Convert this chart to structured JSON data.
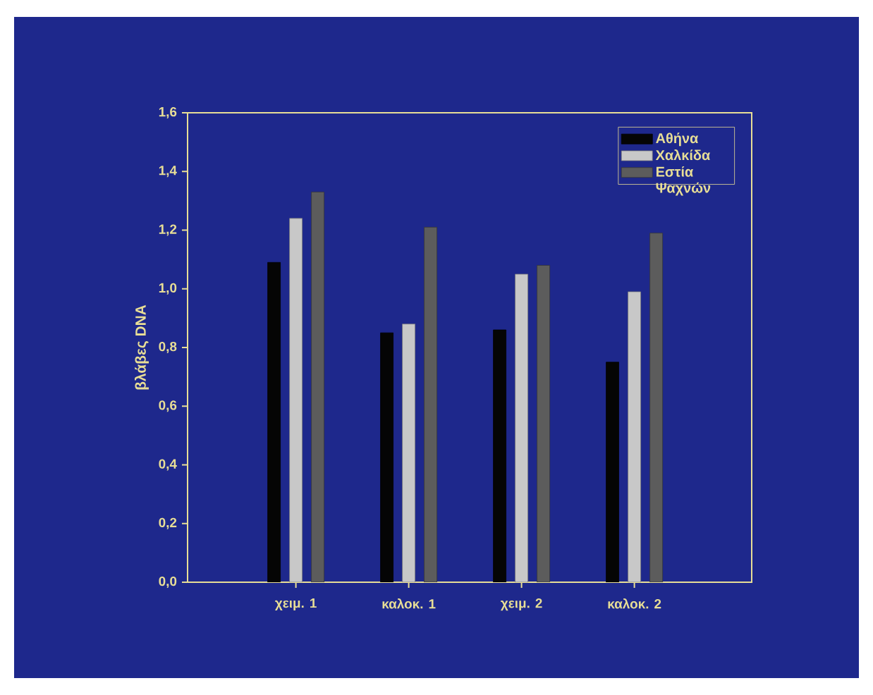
{
  "chart_data": {
    "type": "bar",
    "ylabel": "βλάβες DNA",
    "categories": [
      "χειμ. 1",
      "καλοκ. 1",
      "χειμ. 2",
      "καλοκ. 2"
    ],
    "series": [
      {
        "name": "Αθήνα",
        "color": "#050505",
        "values": [
          1.09,
          0.85,
          0.86,
          0.75
        ]
      },
      {
        "name": "Χαλκίδα",
        "color": "#c8c8c8",
        "values": [
          1.24,
          0.88,
          1.05,
          0.99
        ]
      },
      {
        "name": "Εστία Ψαχνών",
        "color": "#5c5c5c",
        "values": [
          1.33,
          1.21,
          1.08,
          1.19
        ]
      }
    ],
    "ylim": [
      0,
      1.6
    ],
    "yticks": [
      {
        "value": 0,
        "label": "0,0"
      },
      {
        "value": 0.2,
        "label": "0,2"
      },
      {
        "value": 0.4,
        "label": "0,4"
      },
      {
        "value": 0.6,
        "label": "0,6"
      },
      {
        "value": 0.8,
        "label": "0,8"
      },
      {
        "value": 1.0,
        "label": "1,0"
      },
      {
        "value": 1.2,
        "label": "1,2"
      },
      {
        "value": 1.4,
        "label": "1,4"
      },
      {
        "value": 1.6,
        "label": "1,6"
      }
    ],
    "legend": "top right"
  }
}
